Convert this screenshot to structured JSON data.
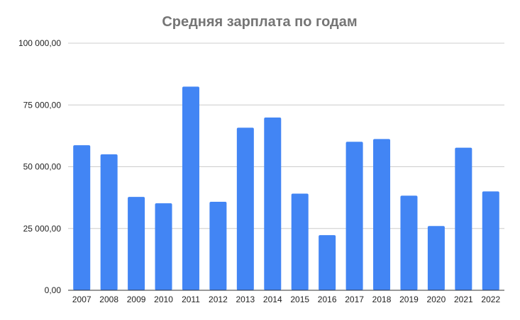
{
  "chart_data": {
    "type": "bar",
    "title": "Средняя зарплата по годам",
    "xlabel": "",
    "ylabel": "",
    "categories": [
      "2007",
      "2008",
      "2009",
      "2010",
      "2011",
      "2012",
      "2013",
      "2014",
      "2015",
      "2016",
      "2017",
      "2018",
      "2019",
      "2020",
      "2021",
      "2022"
    ],
    "series": [
      {
        "values": [
          58700,
          55000,
          37800,
          35200,
          82400,
          35800,
          65800,
          69900,
          39100,
          22300,
          60100,
          61200,
          38300,
          26000,
          57700,
          40000
        ],
        "color": "#4285f4"
      }
    ],
    "ylim": [
      0,
      100000
    ],
    "yticks": [
      0,
      25000,
      50000,
      75000,
      100000
    ],
    "ytick_labels": [
      "0,00",
      "25 000,00",
      "50 000,00",
      "75 000,00",
      "100 000,00"
    ],
    "grid": true,
    "legend": "none"
  }
}
